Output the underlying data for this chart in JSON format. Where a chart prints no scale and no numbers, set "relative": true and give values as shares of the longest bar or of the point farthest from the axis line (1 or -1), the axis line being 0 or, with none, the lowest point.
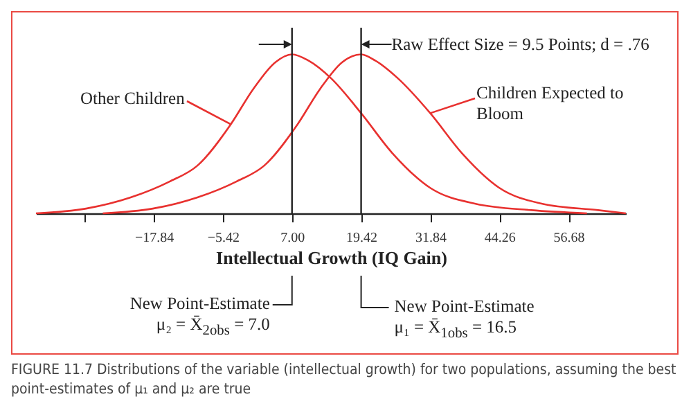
{
  "chart_data": {
    "type": "line",
    "relative": true,
    "marker": "none",
    "line_style": "solid",
    "xlabel": "Intellectual Growth (IQ Gain)",
    "xlim": [
      -39,
      67
    ],
    "xticks": [
      {
        "value": -30.26,
        "label": null
      },
      -17.84,
      -5.42,
      {
        "value": 7,
        "label": "7.00"
      },
      19.42,
      31.84,
      44.26,
      56.68
    ],
    "series": [
      {
        "name": "Other Children",
        "color": "#e8312f",
        "x": [
          -39,
          -30,
          -22,
          -15,
          -10,
          -4,
          0,
          4,
          7,
          10,
          14,
          19.42,
          25,
          31.84,
          40,
          50,
          60
        ],
        "values": [
          0,
          0.03,
          0.1,
          0.2,
          0.3,
          0.56,
          0.78,
          0.95,
          1,
          0.96,
          0.85,
          0.63,
          0.38,
          0.16,
          0.06,
          0.02,
          0
        ]
      },
      {
        "name": "Children Expected to Bloom",
        "color": "#e8312f",
        "x": [
          -27,
          -18,
          -10,
          -3,
          2,
          8,
          12,
          16,
          19.42,
          22,
          26,
          31.84,
          37.5,
          44.26,
          52,
          62,
          67
        ],
        "values": [
          0,
          0.03,
          0.1,
          0.2,
          0.3,
          0.56,
          0.78,
          0.95,
          1,
          0.96,
          0.85,
          0.63,
          0.38,
          0.16,
          0.06,
          0.02,
          0
        ]
      }
    ],
    "ref_lines": [
      {
        "axis": "x",
        "value": 7,
        "color": "#222222"
      },
      {
        "axis": "x",
        "value": 19.42,
        "color": "#222222"
      }
    ],
    "annotations": [
      "Raw Effect Size = 9.5 Points; d = .76",
      "New Point-Estimate μ₂ = X̄$_{2obs}$ = 7.0",
      "New Point-Estimate μ₁ = X̄$_{1obs}$ = 16.5",
      "FIGURE 11.7 Distributions of the variable (intellectual growth) for two populations, assuming the best point-estimates of μ₁ and μ₂ are true"
    ]
  }
}
